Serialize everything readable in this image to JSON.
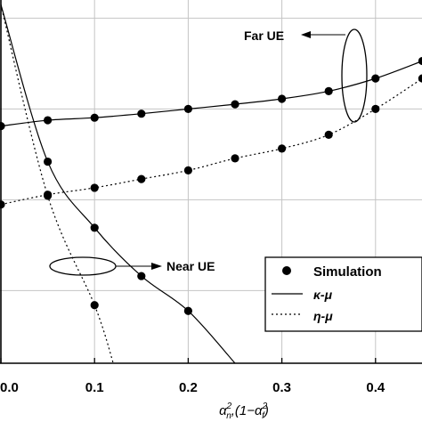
{
  "chart_data": {
    "type": "line",
    "xlabel": "α²ₙ,(1−α²f)",
    "ylabel": "",
    "title": "",
    "xlim": [
      0.0,
      0.45
    ],
    "ylim": [
      0.0,
      1.0
    ],
    "y_scale_note": "no y tick labels visible",
    "xticks": [
      0.0,
      0.1,
      0.2,
      0.3,
      0.4
    ],
    "xtick_labels": [
      "0.0",
      "0.1",
      "0.2",
      "0.3",
      "0.4"
    ],
    "grid": true,
    "legend_position": "bottom-right",
    "legend": {
      "simulation": "Simulation",
      "kappa_mu": "κ-μ",
      "eta_mu": "η-μ"
    },
    "annotations": {
      "far": "Far UE",
      "near": "Near UE"
    },
    "series": [
      {
        "group": "far",
        "style": "solid",
        "legend_key": "kappa_mu",
        "x": [
          0.0,
          0.05,
          0.1,
          0.15,
          0.2,
          0.25,
          0.3,
          0.35,
          0.4,
          0.45
        ],
        "y": [
          0.653,
          0.669,
          0.676,
          0.687,
          0.7,
          0.713,
          0.728,
          0.749,
          0.784,
          0.832
        ]
      },
      {
        "group": "far",
        "style": "dotted",
        "legend_key": "eta_mu",
        "x": [
          0.0,
          0.05,
          0.1,
          0.15,
          0.2,
          0.25,
          0.3,
          0.35,
          0.4,
          0.45
        ],
        "y": [
          0.437,
          0.464,
          0.483,
          0.507,
          0.531,
          0.564,
          0.591,
          0.629,
          0.7,
          0.784
        ]
      },
      {
        "group": "near",
        "style": "solid",
        "legend_key": "kappa_mu",
        "x": [
          0.0,
          0.05,
          0.1,
          0.15,
          0.2,
          0.25
        ],
        "y": [
          0.987,
          0.555,
          0.373,
          0.24,
          0.144,
          0.0
        ]
      },
      {
        "group": "near",
        "style": "dotted",
        "legend_key": "eta_mu",
        "x": [
          0.0,
          0.05,
          0.1,
          0.12
        ],
        "y": [
          0.987,
          0.461,
          0.16,
          0.0
        ]
      }
    ],
    "simulation_points": [
      {
        "x": 0.0,
        "y": 0.653
      },
      {
        "x": 0.05,
        "y": 0.669
      },
      {
        "x": 0.1,
        "y": 0.676
      },
      {
        "x": 0.15,
        "y": 0.687
      },
      {
        "x": 0.2,
        "y": 0.7
      },
      {
        "x": 0.25,
        "y": 0.713
      },
      {
        "x": 0.3,
        "y": 0.728
      },
      {
        "x": 0.35,
        "y": 0.749
      },
      {
        "x": 0.4,
        "y": 0.784
      },
      {
        "x": 0.45,
        "y": 0.832
      },
      {
        "x": 0.0,
        "y": 0.437
      },
      {
        "x": 0.05,
        "y": 0.464
      },
      {
        "x": 0.1,
        "y": 0.483
      },
      {
        "x": 0.15,
        "y": 0.507
      },
      {
        "x": 0.2,
        "y": 0.531
      },
      {
        "x": 0.25,
        "y": 0.564
      },
      {
        "x": 0.3,
        "y": 0.591
      },
      {
        "x": 0.35,
        "y": 0.629
      },
      {
        "x": 0.4,
        "y": 0.7
      },
      {
        "x": 0.45,
        "y": 0.784
      },
      {
        "x": 0.05,
        "y": 0.555
      },
      {
        "x": 0.1,
        "y": 0.373
      },
      {
        "x": 0.15,
        "y": 0.24
      },
      {
        "x": 0.2,
        "y": 0.144
      },
      {
        "x": 0.05,
        "y": 0.461
      },
      {
        "x": 0.1,
        "y": 0.16
      }
    ]
  }
}
